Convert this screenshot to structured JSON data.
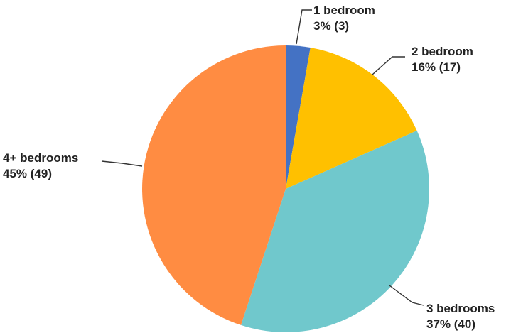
{
  "chart_data": {
    "type": "pie",
    "title": "",
    "slices": [
      {
        "label": "1 bedroom",
        "percent_label": "3% (3)",
        "value": 3,
        "percent": 3,
        "color": "#4472C4"
      },
      {
        "label": "2 bedroom",
        "percent_label": "16% (17)",
        "value": 17,
        "percent": 16,
        "color": "#FFC000"
      },
      {
        "label": "3 bedrooms",
        "percent_label": "37% (40)",
        "value": 40,
        "percent": 37,
        "color": "#70C8CC"
      },
      {
        "label": "4+ bedrooms",
        "percent_label": "45% (49)",
        "value": 49,
        "percent": 45,
        "color": "#FF8C42"
      }
    ],
    "legend": "none"
  }
}
